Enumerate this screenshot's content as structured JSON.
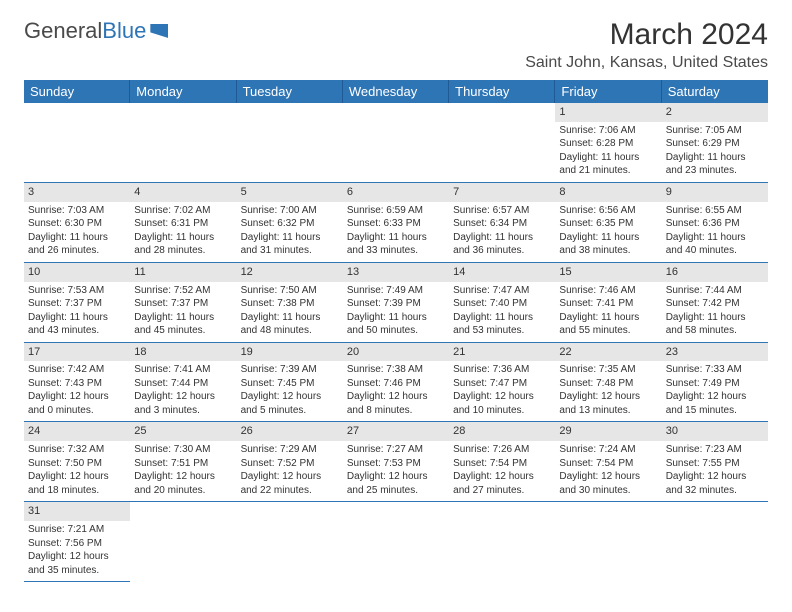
{
  "logo": {
    "text1": "General",
    "text2": "Blue"
  },
  "title": "March 2024",
  "location": "Saint John, Kansas, United States",
  "weekdays": [
    "Sunday",
    "Monday",
    "Tuesday",
    "Wednesday",
    "Thursday",
    "Friday",
    "Saturday"
  ],
  "colors": {
    "header_bg": "#2e75b6",
    "header_text": "#ffffff",
    "daynum_bg": "#e6e6e6",
    "border": "#2e75b6",
    "body_text": "#333333"
  },
  "weeks": [
    [
      null,
      null,
      null,
      null,
      null,
      {
        "day": "1",
        "sunrise": "Sunrise: 7:06 AM",
        "sunset": "Sunset: 6:28 PM",
        "daylight1": "Daylight: 11 hours",
        "daylight2": "and 21 minutes."
      },
      {
        "day": "2",
        "sunrise": "Sunrise: 7:05 AM",
        "sunset": "Sunset: 6:29 PM",
        "daylight1": "Daylight: 11 hours",
        "daylight2": "and 23 minutes."
      }
    ],
    [
      {
        "day": "3",
        "sunrise": "Sunrise: 7:03 AM",
        "sunset": "Sunset: 6:30 PM",
        "daylight1": "Daylight: 11 hours",
        "daylight2": "and 26 minutes."
      },
      {
        "day": "4",
        "sunrise": "Sunrise: 7:02 AM",
        "sunset": "Sunset: 6:31 PM",
        "daylight1": "Daylight: 11 hours",
        "daylight2": "and 28 minutes."
      },
      {
        "day": "5",
        "sunrise": "Sunrise: 7:00 AM",
        "sunset": "Sunset: 6:32 PM",
        "daylight1": "Daylight: 11 hours",
        "daylight2": "and 31 minutes."
      },
      {
        "day": "6",
        "sunrise": "Sunrise: 6:59 AM",
        "sunset": "Sunset: 6:33 PM",
        "daylight1": "Daylight: 11 hours",
        "daylight2": "and 33 minutes."
      },
      {
        "day": "7",
        "sunrise": "Sunrise: 6:57 AM",
        "sunset": "Sunset: 6:34 PM",
        "daylight1": "Daylight: 11 hours",
        "daylight2": "and 36 minutes."
      },
      {
        "day": "8",
        "sunrise": "Sunrise: 6:56 AM",
        "sunset": "Sunset: 6:35 PM",
        "daylight1": "Daylight: 11 hours",
        "daylight2": "and 38 minutes."
      },
      {
        "day": "9",
        "sunrise": "Sunrise: 6:55 AM",
        "sunset": "Sunset: 6:36 PM",
        "daylight1": "Daylight: 11 hours",
        "daylight2": "and 40 minutes."
      }
    ],
    [
      {
        "day": "10",
        "sunrise": "Sunrise: 7:53 AM",
        "sunset": "Sunset: 7:37 PM",
        "daylight1": "Daylight: 11 hours",
        "daylight2": "and 43 minutes."
      },
      {
        "day": "11",
        "sunrise": "Sunrise: 7:52 AM",
        "sunset": "Sunset: 7:37 PM",
        "daylight1": "Daylight: 11 hours",
        "daylight2": "and 45 minutes."
      },
      {
        "day": "12",
        "sunrise": "Sunrise: 7:50 AM",
        "sunset": "Sunset: 7:38 PM",
        "daylight1": "Daylight: 11 hours",
        "daylight2": "and 48 minutes."
      },
      {
        "day": "13",
        "sunrise": "Sunrise: 7:49 AM",
        "sunset": "Sunset: 7:39 PM",
        "daylight1": "Daylight: 11 hours",
        "daylight2": "and 50 minutes."
      },
      {
        "day": "14",
        "sunrise": "Sunrise: 7:47 AM",
        "sunset": "Sunset: 7:40 PM",
        "daylight1": "Daylight: 11 hours",
        "daylight2": "and 53 minutes."
      },
      {
        "day": "15",
        "sunrise": "Sunrise: 7:46 AM",
        "sunset": "Sunset: 7:41 PM",
        "daylight1": "Daylight: 11 hours",
        "daylight2": "and 55 minutes."
      },
      {
        "day": "16",
        "sunrise": "Sunrise: 7:44 AM",
        "sunset": "Sunset: 7:42 PM",
        "daylight1": "Daylight: 11 hours",
        "daylight2": "and 58 minutes."
      }
    ],
    [
      {
        "day": "17",
        "sunrise": "Sunrise: 7:42 AM",
        "sunset": "Sunset: 7:43 PM",
        "daylight1": "Daylight: 12 hours",
        "daylight2": "and 0 minutes."
      },
      {
        "day": "18",
        "sunrise": "Sunrise: 7:41 AM",
        "sunset": "Sunset: 7:44 PM",
        "daylight1": "Daylight: 12 hours",
        "daylight2": "and 3 minutes."
      },
      {
        "day": "19",
        "sunrise": "Sunrise: 7:39 AM",
        "sunset": "Sunset: 7:45 PM",
        "daylight1": "Daylight: 12 hours",
        "daylight2": "and 5 minutes."
      },
      {
        "day": "20",
        "sunrise": "Sunrise: 7:38 AM",
        "sunset": "Sunset: 7:46 PM",
        "daylight1": "Daylight: 12 hours",
        "daylight2": "and 8 minutes."
      },
      {
        "day": "21",
        "sunrise": "Sunrise: 7:36 AM",
        "sunset": "Sunset: 7:47 PM",
        "daylight1": "Daylight: 12 hours",
        "daylight2": "and 10 minutes."
      },
      {
        "day": "22",
        "sunrise": "Sunrise: 7:35 AM",
        "sunset": "Sunset: 7:48 PM",
        "daylight1": "Daylight: 12 hours",
        "daylight2": "and 13 minutes."
      },
      {
        "day": "23",
        "sunrise": "Sunrise: 7:33 AM",
        "sunset": "Sunset: 7:49 PM",
        "daylight1": "Daylight: 12 hours",
        "daylight2": "and 15 minutes."
      }
    ],
    [
      {
        "day": "24",
        "sunrise": "Sunrise: 7:32 AM",
        "sunset": "Sunset: 7:50 PM",
        "daylight1": "Daylight: 12 hours",
        "daylight2": "and 18 minutes."
      },
      {
        "day": "25",
        "sunrise": "Sunrise: 7:30 AM",
        "sunset": "Sunset: 7:51 PM",
        "daylight1": "Daylight: 12 hours",
        "daylight2": "and 20 minutes."
      },
      {
        "day": "26",
        "sunrise": "Sunrise: 7:29 AM",
        "sunset": "Sunset: 7:52 PM",
        "daylight1": "Daylight: 12 hours",
        "daylight2": "and 22 minutes."
      },
      {
        "day": "27",
        "sunrise": "Sunrise: 7:27 AM",
        "sunset": "Sunset: 7:53 PM",
        "daylight1": "Daylight: 12 hours",
        "daylight2": "and 25 minutes."
      },
      {
        "day": "28",
        "sunrise": "Sunrise: 7:26 AM",
        "sunset": "Sunset: 7:54 PM",
        "daylight1": "Daylight: 12 hours",
        "daylight2": "and 27 minutes."
      },
      {
        "day": "29",
        "sunrise": "Sunrise: 7:24 AM",
        "sunset": "Sunset: 7:54 PM",
        "daylight1": "Daylight: 12 hours",
        "daylight2": "and 30 minutes."
      },
      {
        "day": "30",
        "sunrise": "Sunrise: 7:23 AM",
        "sunset": "Sunset: 7:55 PM",
        "daylight1": "Daylight: 12 hours",
        "daylight2": "and 32 minutes."
      }
    ],
    [
      {
        "day": "31",
        "sunrise": "Sunrise: 7:21 AM",
        "sunset": "Sunset: 7:56 PM",
        "daylight1": "Daylight: 12 hours",
        "daylight2": "and 35 minutes."
      },
      null,
      null,
      null,
      null,
      null,
      null
    ]
  ]
}
